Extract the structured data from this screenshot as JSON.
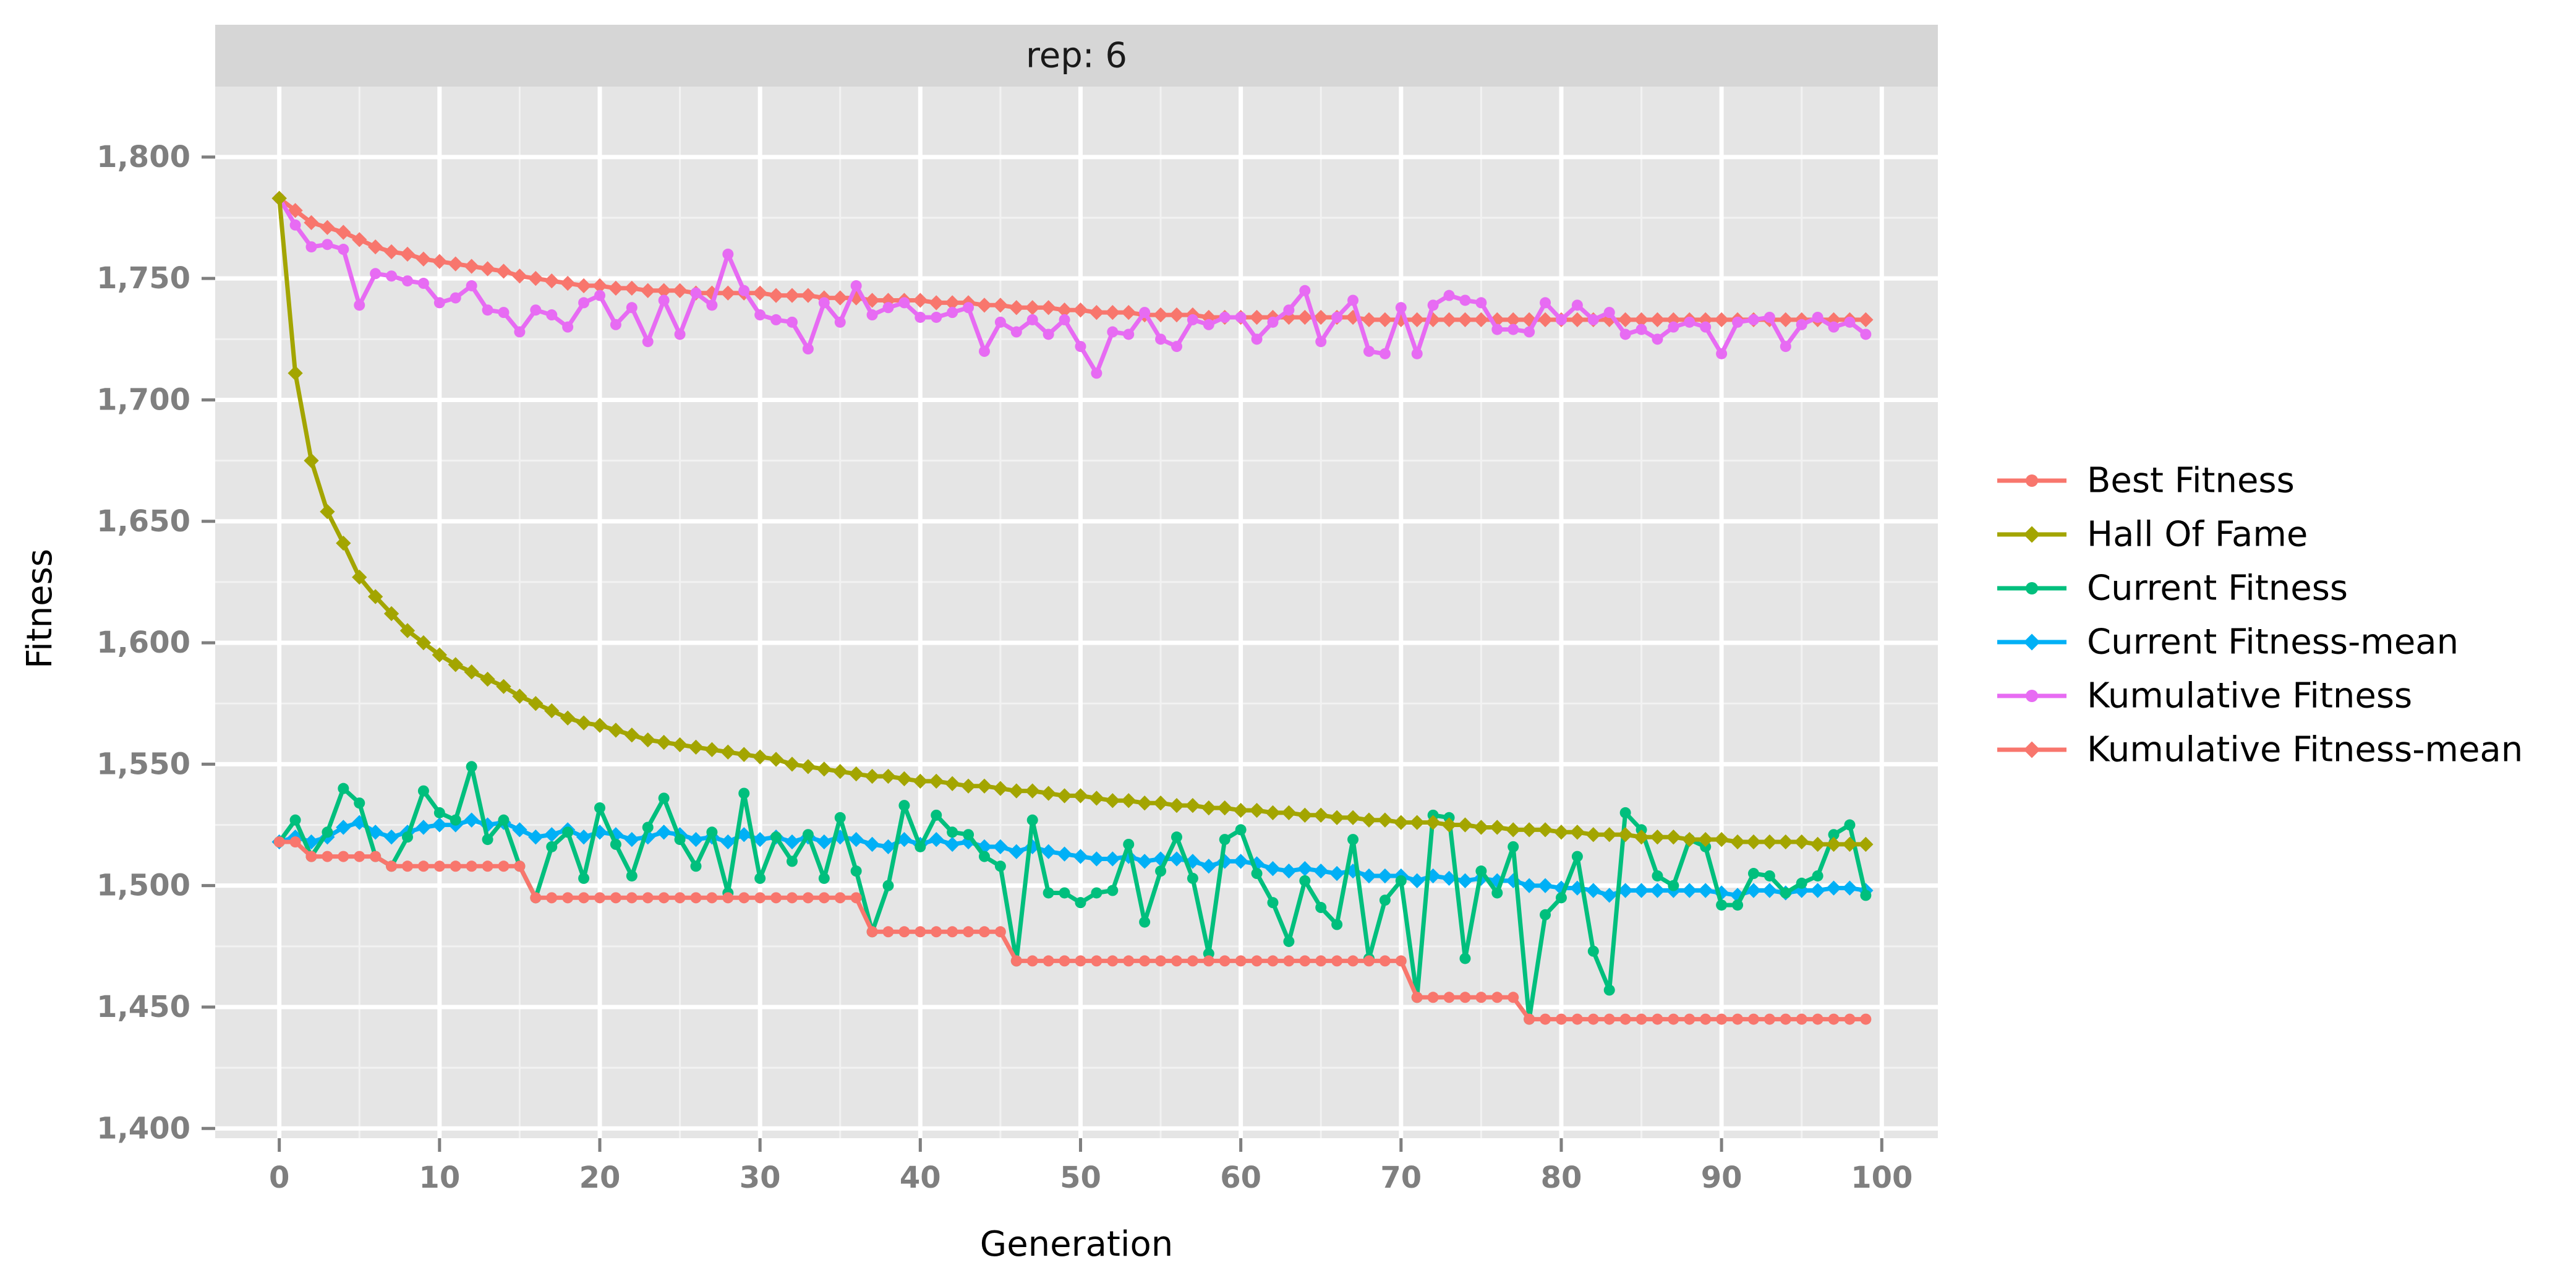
{
  "chart_data": {
    "type": "line",
    "facet_label": "rep: 6",
    "xlabel": "Generation",
    "ylabel": "Fitness",
    "xlim": [
      -4,
      103.5
    ],
    "ylim": [
      1396,
      1829
    ],
    "x_ticks": [
      0,
      10,
      20,
      30,
      40,
      50,
      60,
      70,
      80,
      90,
      100
    ],
    "x_tick_labels": [
      "0",
      "10",
      "20",
      "30",
      "40",
      "50",
      "60",
      "70",
      "80",
      "90",
      "100"
    ],
    "y_ticks": [
      1400,
      1450,
      1500,
      1550,
      1600,
      1650,
      1700,
      1750,
      1800
    ],
    "y_tick_labels": [
      "1,400",
      "1,450",
      "1,500",
      "1,550",
      "1,600",
      "1,650",
      "1,700",
      "1,750",
      "1,800"
    ],
    "grid": true,
    "legend_position": "right",
    "x": [
      0,
      1,
      2,
      3,
      4,
      5,
      6,
      7,
      8,
      9,
      10,
      11,
      12,
      13,
      14,
      15,
      16,
      17,
      18,
      19,
      20,
      21,
      22,
      23,
      24,
      25,
      26,
      27,
      28,
      29,
      30,
      31,
      32,
      33,
      34,
      35,
      36,
      37,
      38,
      39,
      40,
      41,
      42,
      43,
      44,
      45,
      46,
      47,
      48,
      49,
      50,
      51,
      52,
      53,
      54,
      55,
      56,
      57,
      58,
      59,
      60,
      61,
      62,
      63,
      64,
      65,
      66,
      67,
      68,
      69,
      70,
      71,
      72,
      73,
      74,
      75,
      76,
      77,
      78,
      79,
      80,
      81,
      82,
      83,
      84,
      85,
      86,
      87,
      88,
      89,
      90,
      91,
      92,
      93,
      94,
      95,
      96,
      97,
      98,
      99
    ],
    "series": [
      {
        "name": "Best Fitness",
        "color": "#F8766D",
        "marker": "circle",
        "values": [
          1518,
          1518,
          1512,
          1512,
          1512,
          1512,
          1512,
          1508,
          1508,
          1508,
          1508,
          1508,
          1508,
          1508,
          1508,
          1508,
          1495,
          1495,
          1495,
          1495,
          1495,
          1495,
          1495,
          1495,
          1495,
          1495,
          1495,
          1495,
          1495,
          1495,
          1495,
          1495,
          1495,
          1495,
          1495,
          1495,
          1495,
          1481,
          1481,
          1481,
          1481,
          1481,
          1481,
          1481,
          1481,
          1481,
          1469,
          1469,
          1469,
          1469,
          1469,
          1469,
          1469,
          1469,
          1469,
          1469,
          1469,
          1469,
          1469,
          1469,
          1469,
          1469,
          1469,
          1469,
          1469,
          1469,
          1469,
          1469,
          1469,
          1469,
          1469,
          1454,
          1454,
          1454,
          1454,
          1454,
          1454,
          1454,
          1445,
          1445,
          1445,
          1445,
          1445,
          1445,
          1445,
          1445,
          1445,
          1445,
          1445,
          1445,
          1445,
          1445,
          1445,
          1445,
          1445,
          1445,
          1445,
          1445,
          1445,
          1445
        ]
      },
      {
        "name": "Hall Of Fame",
        "color": "#A3A500",
        "marker": "diamond",
        "values": [
          1783,
          1711,
          1675,
          1654,
          1641,
          1627,
          1619,
          1612,
          1605,
          1600,
          1595,
          1591,
          1588,
          1585,
          1582,
          1578,
          1575,
          1572,
          1569,
          1567,
          1566,
          1564,
          1562,
          1560,
          1559,
          1558,
          1557,
          1556,
          1555,
          1554,
          1553,
          1552,
          1550,
          1549,
          1548,
          1547,
          1546,
          1545,
          1545,
          1544,
          1543,
          1543,
          1542,
          1541,
          1541,
          1540,
          1539,
          1539,
          1538,
          1537,
          1537,
          1536,
          1535,
          1535,
          1534,
          1534,
          1533,
          1533,
          1532,
          1532,
          1531,
          1531,
          1530,
          1530,
          1529,
          1529,
          1528,
          1528,
          1527,
          1527,
          1526,
          1526,
          1526,
          1525,
          1525,
          1524,
          1524,
          1523,
          1523,
          1523,
          1522,
          1522,
          1521,
          1521,
          1521,
          1520,
          1520,
          1520,
          1519,
          1519,
          1519,
          1518,
          1518,
          1518,
          1518,
          1518,
          1517,
          1517,
          1517,
          1517
        ]
      },
      {
        "name": "Current Fitness",
        "color": "#00BF7D",
        "marker": "circle",
        "values": [
          1518,
          1527,
          1512,
          1522,
          1540,
          1534,
          1512,
          1508,
          1520,
          1539,
          1530,
          1527,
          1549,
          1519,
          1527,
          1508,
          1495,
          1516,
          1522,
          1503,
          1532,
          1517,
          1504,
          1524,
          1536,
          1519,
          1508,
          1522,
          1497,
          1538,
          1503,
          1520,
          1510,
          1521,
          1503,
          1528,
          1506,
          1481,
          1500,
          1533,
          1516,
          1529,
          1522,
          1521,
          1512,
          1508,
          1469,
          1527,
          1497,
          1497,
          1493,
          1497,
          1498,
          1517,
          1485,
          1506,
          1520,
          1503,
          1472,
          1519,
          1523,
          1505,
          1493,
          1477,
          1502,
          1491,
          1484,
          1519,
          1470,
          1494,
          1502,
          1454,
          1529,
          1528,
          1470,
          1506,
          1497,
          1516,
          1445,
          1488,
          1495,
          1512,
          1473,
          1457,
          1530,
          1523,
          1504,
          1500,
          1519,
          1516,
          1492,
          1492,
          1505,
          1504,
          1497,
          1501,
          1504,
          1521,
          1525,
          1496
        ]
      },
      {
        "name": "Current Fitness-mean",
        "color": "#00B0F6",
        "marker": "diamond",
        "values": [
          1518,
          1520,
          1518,
          1520,
          1524,
          1526,
          1522,
          1520,
          1522,
          1524,
          1525,
          1525,
          1527,
          1525,
          1526,
          1523,
          1520,
          1521,
          1523,
          1520,
          1522,
          1521,
          1519,
          1520,
          1522,
          1521,
          1519,
          1520,
          1518,
          1521,
          1519,
          1520,
          1518,
          1520,
          1518,
          1520,
          1519,
          1517,
          1516,
          1519,
          1517,
          1519,
          1517,
          1518,
          1516,
          1516,
          1514,
          1516,
          1514,
          1513,
          1512,
          1511,
          1511,
          1512,
          1510,
          1511,
          1511,
          1510,
          1508,
          1510,
          1510,
          1509,
          1507,
          1506,
          1507,
          1506,
          1505,
          1506,
          1504,
          1504,
          1504,
          1502,
          1504,
          1503,
          1502,
          1503,
          1502,
          1502,
          1500,
          1500,
          1499,
          1499,
          1498,
          1496,
          1498,
          1498,
          1498,
          1498,
          1498,
          1498,
          1497,
          1496,
          1498,
          1498,
          1497,
          1498,
          1498,
          1499,
          1499,
          1498
        ]
      },
      {
        "name": "Kumulative Fitness",
        "color": "#E76BF3",
        "marker": "circle",
        "values": [
          1783,
          1772,
          1763,
          1764,
          1762,
          1739,
          1752,
          1751,
          1749,
          1748,
          1740,
          1742,
          1747,
          1737,
          1736,
          1728,
          1737,
          1735,
          1730,
          1740,
          1743,
          1731,
          1738,
          1724,
          1741,
          1727,
          1744,
          1739,
          1760,
          1745,
          1735,
          1733,
          1732,
          1721,
          1740,
          1732,
          1747,
          1735,
          1738,
          1740,
          1734,
          1734,
          1736,
          1738,
          1720,
          1732,
          1728,
          1733,
          1727,
          1733,
          1722,
          1711,
          1728,
          1727,
          1736,
          1725,
          1722,
          1733,
          1731,
          1734,
          1734,
          1725,
          1732,
          1737,
          1745,
          1724,
          1734,
          1741,
          1720,
          1719,
          1738,
          1719,
          1739,
          1743,
          1741,
          1740,
          1729,
          1729,
          1728,
          1740,
          1733,
          1739,
          1733,
          1736,
          1727,
          1729,
          1725,
          1730,
          1732,
          1730,
          1719,
          1732,
          1733,
          1734,
          1722,
          1731,
          1734,
          1730,
          1732,
          1727
        ]
      },
      {
        "name": "Kumulative Fitness-mean",
        "color": "#F8766D",
        "marker": "diamond",
        "values": [
          1783,
          1778,
          1773,
          1771,
          1769,
          1766,
          1763,
          1761,
          1760,
          1758,
          1757,
          1756,
          1755,
          1754,
          1753,
          1751,
          1750,
          1749,
          1748,
          1747,
          1747,
          1746,
          1746,
          1745,
          1745,
          1745,
          1744,
          1744,
          1744,
          1744,
          1744,
          1743,
          1743,
          1743,
          1742,
          1742,
          1742,
          1741,
          1741,
          1741,
          1741,
          1740,
          1740,
          1740,
          1739,
          1739,
          1738,
          1738,
          1738,
          1737,
          1737,
          1736,
          1736,
          1736,
          1735,
          1735,
          1735,
          1735,
          1734,
          1734,
          1734,
          1734,
          1734,
          1734,
          1734,
          1734,
          1734,
          1734,
          1733,
          1733,
          1733,
          1733,
          1733,
          1733,
          1733,
          1733,
          1733,
          1733,
          1733,
          1733,
          1733,
          1733,
          1733,
          1733,
          1733,
          1733,
          1733,
          1733,
          1733,
          1733,
          1733,
          1733,
          1733,
          1733,
          1733,
          1733,
          1733,
          1733,
          1733,
          1733
        ]
      }
    ]
  }
}
